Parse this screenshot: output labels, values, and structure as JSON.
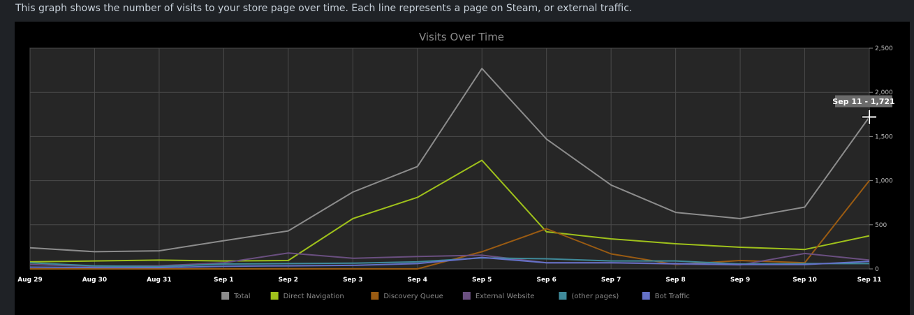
{
  "description": "This graph shows the number of visits to your store page over time. Each line represents a page on Steam, or external traffic.",
  "tooltip": {
    "label": "Sep 11 - 1,721",
    "series": "Total",
    "category": "Sep 11",
    "value": 1721
  },
  "colors": {
    "plot_background": "#262626",
    "grid": "#4a4a4a"
  },
  "chart_data": {
    "type": "line",
    "title": "Visits Over Time",
    "xlabel": "",
    "ylabel": "",
    "categories": [
      "Aug 29",
      "Aug 30",
      "Aug 31",
      "Sep 1",
      "Sep 2",
      "Sep 3",
      "Sep 4",
      "Sep 5",
      "Sep 6",
      "Sep 7",
      "Sep 8",
      "Sep 9",
      "Sep 10",
      "Sep 11"
    ],
    "ylim": [
      0,
      2500
    ],
    "yticks": [
      0,
      500,
      1000,
      1500,
      2000,
      2500
    ],
    "ytick_labels": [
      "0",
      "500",
      "1,000",
      "1,500",
      "2,000",
      "2,500"
    ],
    "y_axis_side": "right",
    "grid": true,
    "legend_position": "bottom-center",
    "series": [
      {
        "name": "Total",
        "color": "#8c8c8c",
        "values": [
          240,
          195,
          205,
          320,
          430,
          870,
          1160,
          2270,
          1470,
          950,
          640,
          570,
          700,
          1721
        ]
      },
      {
        "name": "Direct Navigation",
        "color": "#9fc11b",
        "values": [
          80,
          90,
          100,
          90,
          95,
          570,
          810,
          1230,
          420,
          340,
          285,
          245,
          220,
          375
        ]
      },
      {
        "name": "Discovery Queue",
        "color": "#9a5b12",
        "values": [
          0,
          0,
          0,
          0,
          0,
          0,
          0,
          195,
          455,
          170,
          50,
          95,
          70,
          1000
        ]
      },
      {
        "name": "External Website",
        "color": "#6a4f80",
        "values": [
          50,
          30,
          35,
          70,
          180,
          120,
          140,
          155,
          70,
          70,
          55,
          45,
          175,
          100
        ]
      },
      {
        "name": "(other pages)",
        "color": "#3f8a9a",
        "values": [
          70,
          35,
          25,
          55,
          60,
          65,
          80,
          125,
          115,
          90,
          90,
          55,
          60,
          60
        ]
      },
      {
        "name": "Bot Traffic",
        "color": "#6471c7",
        "values": [
          20,
          15,
          15,
          30,
          35,
          40,
          60,
          130,
          70,
          70,
          60,
          50,
          50,
          85
        ]
      }
    ]
  }
}
